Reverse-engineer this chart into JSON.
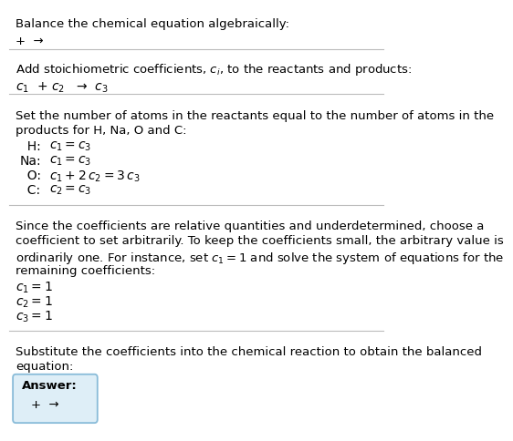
{
  "title": "Balance the chemical equation algebraically:",
  "line1": "+  →",
  "section1_header": "Add stoichiometric coefficients, $c_i$, to the reactants and products:",
  "section1_line": "$c_1$  + $c_2$   →  $c_3$",
  "section2_header_1": "Set the number of atoms in the reactants equal to the number of atoms in the",
  "section2_header_2": "products for H, Na, O and C:",
  "section2_lines": [
    [
      "  H:",
      "$c_1 = c_3$"
    ],
    [
      "Na:",
      "$c_1 = c_3$"
    ],
    [
      "  O:",
      "$c_1 + 2\\,c_2 = 3\\,c_3$"
    ],
    [
      "  C:",
      "$c_2 = c_3$"
    ]
  ],
  "section3_header_1": "Since the coefficients are relative quantities and underdetermined, choose a",
  "section3_header_2": "coefficient to set arbitrarily. To keep the coefficients small, the arbitrary value is",
  "section3_header_3": "ordinarily one. For instance, set $c_1 = 1$ and solve the system of equations for the",
  "section3_header_4": "remaining coefficients:",
  "section3_lines": [
    "$c_1 = 1$",
    "$c_2 = 1$",
    "$c_3 = 1$"
  ],
  "section4_header_1": "Substitute the coefficients into the chemical reaction to obtain the balanced",
  "section4_header_2": "equation:",
  "answer_label": "Answer:",
  "answer_line": "+  →",
  "bg_color": "#ffffff",
  "text_color": "#000000",
  "box_bg": "#deeef7",
  "box_border": "#88bbd8",
  "divider_color": "#bbbbbb"
}
